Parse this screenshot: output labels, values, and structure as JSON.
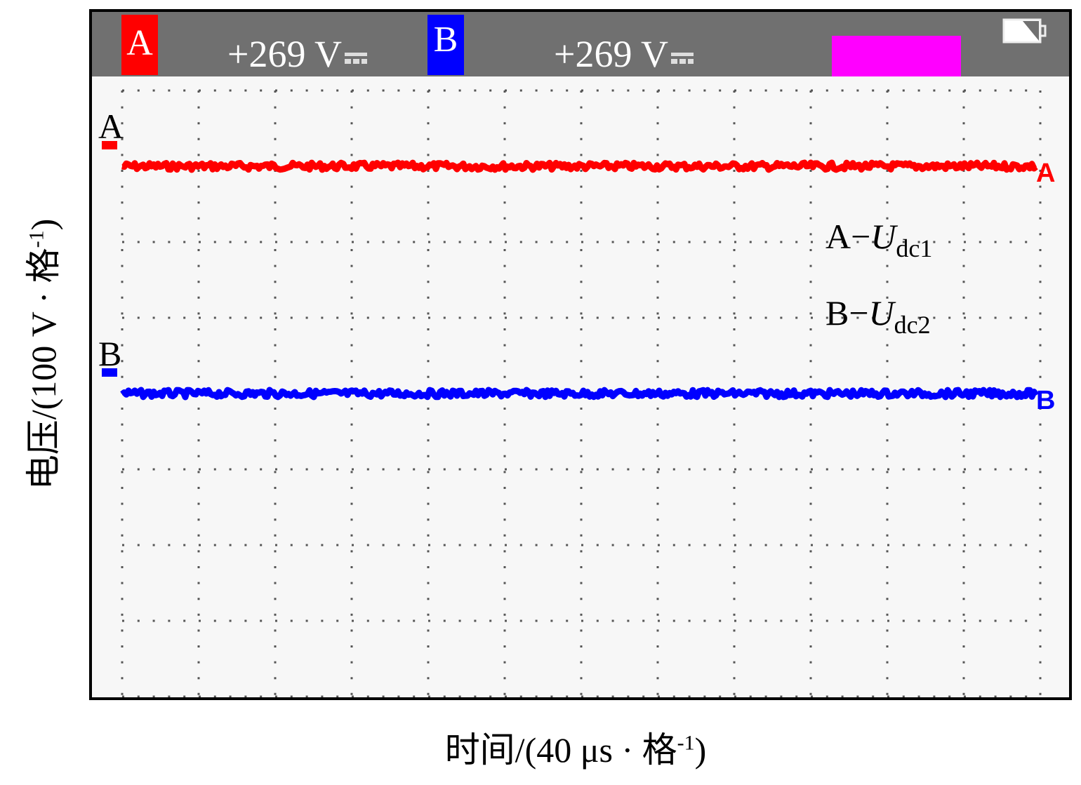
{
  "header": {
    "channel_a": "A",
    "channel_a_value": "+269 V",
    "channel_b": "B",
    "channel_b_value": "+269 V",
    "coupling_icon": "dc-coupling-icon",
    "battery_icon": "battery-icon"
  },
  "colors": {
    "a": "#ff0000",
    "b": "#0000ff",
    "marker": "#ff00ff",
    "header": "#707070"
  },
  "chart_data": {
    "type": "line",
    "xlabel": "时间/(40 μs · 格",
    "xlabel_sup": "-1",
    "xlabel_end": ")",
    "ylabel": "电压/(100 V · 格",
    "ylabel_sup": "-1",
    "ylabel_end": ")",
    "x_divisions": 12,
    "y_divisions": 8,
    "xlim": [
      0,
      480
    ],
    "ylim": [
      0,
      8
    ],
    "series": [
      {
        "name": "A",
        "label": "A",
        "legend": "A−",
        "legend_var": "U",
        "legend_sub": "dc1",
        "level_div": 7,
        "value_V": 269
      },
      {
        "name": "B",
        "label": "B",
        "legend": "B−",
        "legend_var": "U",
        "legend_sub": "dc2",
        "level_div": 4,
        "value_V": 269
      }
    ]
  }
}
